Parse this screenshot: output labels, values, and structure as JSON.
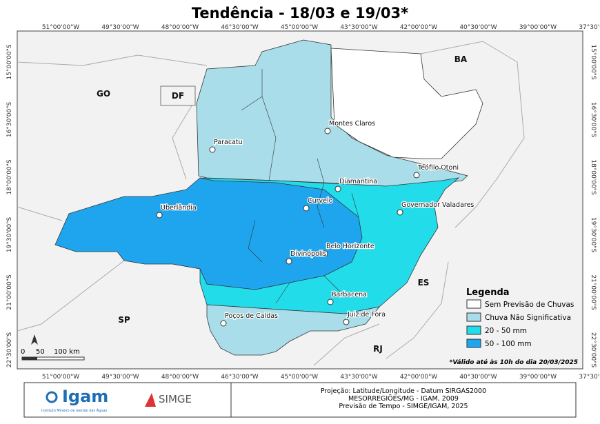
{
  "title": "Tendência - 18/03 e 19/03*",
  "longitudes": [
    "51°00'00\"W",
    "49°30'00\"W",
    "48°00'00\"W",
    "46°30'00\"W",
    "45°00'00\"W",
    "43°30'00\"W",
    "42°00'00\"W",
    "40°30'00\"W",
    "39°00'00\"W",
    "37°30'00\"W"
  ],
  "latitudes": [
    "15°00'00\"S",
    "16°30'00\"S",
    "18°00'00\"S",
    "19°30'00\"S",
    "21°00'00\"S",
    "22°30'00\"S"
  ],
  "states": [
    "BA",
    "GO",
    "DF",
    "SP",
    "ES",
    "RJ"
  ],
  "cities": [
    "Montes Claros",
    "Paracatu",
    "Teófilo Otoni",
    "Diamantina",
    "Curvelo",
    "Governador Valadares",
    "Uberlândia",
    "Belo Horizonte",
    "Divinópolis",
    "Barbacena",
    "Juiz de Fora",
    "Poços de Caldas"
  ],
  "legend": {
    "title": "Legenda",
    "items": [
      "Sem Previsão de Chuvas",
      "Chuva Não Significativa",
      "20 - 50 mm",
      "50 - 100 mm"
    ]
  },
  "scale": [
    "0",
    "50",
    "100 km"
  ],
  "note": "*Válido até às 10h do dia 20/03/2025",
  "footer": {
    "logo": "Igam",
    "logo_subtitle": "Instituto Mineiro de Gestão das Águas",
    "logo2": "SIMGE",
    "credits": [
      "Projeção: Latitude/Longitude - Datum SIRGAS2000",
      "MESORREGIÕES/MG - IGAM, 2009",
      "Previsão de Tempo - SIMGE/IGAM, 2025"
    ]
  }
}
